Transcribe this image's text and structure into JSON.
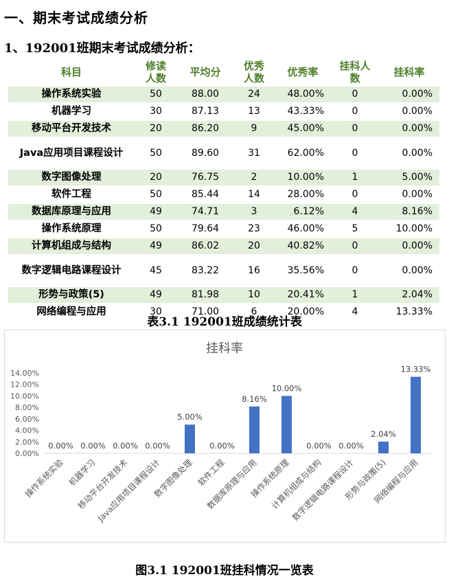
{
  "section_title": "一、期末考试成绩分析",
  "subsection_title": "1、192001班期末考试成绩分析：",
  "table": {
    "headers": [
      "科目",
      "修读人数",
      "平均分",
      "优秀人数",
      "优秀率",
      "挂科人数",
      "挂科率"
    ],
    "rows": [
      [
        "操作系统实验",
        "50",
        "88.00",
        "24",
        "48.00%",
        "0",
        "0.00%"
      ],
      [
        "机器学习",
        "30",
        "87.13",
        "13",
        "43.33%",
        "0",
        "0.00%"
      ],
      [
        "移动平台开发技术",
        "20",
        "86.20",
        "9",
        "45.00%",
        "0",
        "0.00%"
      ],
      [
        "Java应用项目课程设计",
        "50",
        "89.60",
        "31",
        "62.00%",
        "0",
        "0.00%"
      ],
      [
        "数字图像处理",
        "20",
        "76.75",
        "2",
        "10.00%",
        "1",
        "5.00%"
      ],
      [
        "软件工程",
        "50",
        "85.44",
        "14",
        "28.00%",
        "0",
        "0.00%"
      ],
      [
        "数据库原理与应用",
        "49",
        "74.71",
        "3",
        "6.12%",
        "4",
        "8.16%"
      ],
      [
        "操作系统原理",
        "50",
        "79.64",
        "23",
        "46.00%",
        "5",
        "10.00%"
      ],
      [
        "计算机组成与结构",
        "49",
        "86.02",
        "20",
        "40.82%",
        "0",
        "0.00%"
      ],
      [
        "数字逻辑电路课程设计",
        "45",
        "83.22",
        "16",
        "35.56%",
        "0",
        "0.00%"
      ],
      [
        "形势与政策(5)",
        "49",
        "81.98",
        "10",
        "20.41%",
        "1",
        "2.04%"
      ],
      [
        "网络编程与应用",
        "30",
        "71.00",
        "6",
        "20.00%",
        "4",
        "13.33%"
      ]
    ],
    "caption": "表3.1 192001班成绩统计表"
  },
  "chart_data": {
    "type": "bar",
    "title": "挂科率",
    "categories": [
      "操作系统实验",
      "机器学习",
      "移动平台开发技术",
      "Java应用项目课程设计",
      "数字图像处理",
      "软件工程",
      "数据库原理与应用",
      "操作系统原理",
      "计算机组成与结构",
      "数字逻辑电路课程设计",
      "形势与政策(5)",
      "网络编程与应用"
    ],
    "values": [
      0,
      0,
      0,
      0,
      5.0,
      0,
      8.16,
      10.0,
      0,
      0,
      2.04,
      13.33
    ],
    "data_labels": [
      "0.00%",
      "0.00%",
      "0.00%",
      "0.00%",
      "5.00%",
      "0.00%",
      "8.16%",
      "10.00%",
      "0.00%",
      "0.00%",
      "2.04%",
      "13.33%"
    ],
    "yticks": [
      "0.00%",
      "2.00%",
      "4.00%",
      "6.00%",
      "8.00%",
      "10.00%",
      "12.00%",
      "14.00%"
    ],
    "ylim": [
      0,
      14
    ],
    "bar_color": "#4472c4",
    "grid": false,
    "xlabel": "",
    "ylabel": ""
  },
  "figure_caption": "图3.1 192001班挂科情况一览表"
}
